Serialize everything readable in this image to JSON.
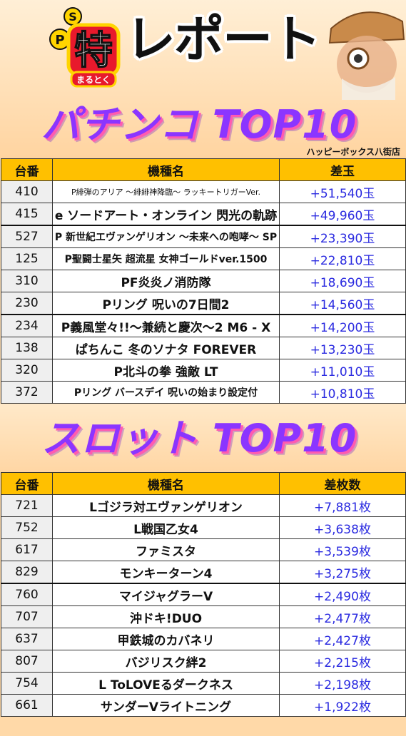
{
  "header": {
    "logo_letter_p": "P",
    "logo_letter_s": "S",
    "logo_kanji": "特",
    "logo_kana": "まるとく",
    "title": "レポート"
  },
  "pachinko": {
    "title": "パチンコ TOP10",
    "store": "ハッピーボックス八街店",
    "columns": [
      "台番",
      "機種名",
      "差玉"
    ],
    "rows": [
      {
        "num": "410",
        "name": "P緋弾のアリア 〜緋緋神降臨〜 ラッキートリガーVer.",
        "value": "+51,540玉"
      },
      {
        "num": "415",
        "name": "e ソードアート・オンライン 閃光の軌跡",
        "value": "+49,960玉"
      },
      {
        "num": "527",
        "name": "P 新世紀エヴァンゲリオン 〜未来への咆哮〜 SP",
        "value": "+23,390玉"
      },
      {
        "num": "125",
        "name": "P聖闘士星矢 超流星 女神ゴールドver.1500",
        "value": "+22,810玉"
      },
      {
        "num": "310",
        "name": "PF炎炎ノ消防隊",
        "value": "+18,690玉"
      },
      {
        "num": "230",
        "name": "Pリング 呪いの7日間2",
        "value": "+14,560玉"
      },
      {
        "num": "234",
        "name": "P義風堂々!!〜兼続と慶次〜2 M6 - X",
        "value": "+14,200玉"
      },
      {
        "num": "138",
        "name": "ぱちんこ 冬のソナタ FOREVER",
        "value": "+13,230玉"
      },
      {
        "num": "320",
        "name": "P北斗の拳 強敵 LT",
        "value": "+11,010玉"
      },
      {
        "num": "372",
        "name": "Pリング バースデイ 呪いの始まり設定付",
        "value": "+10,810玉"
      }
    ]
  },
  "slot": {
    "title": "スロット TOP10",
    "columns": [
      "台番",
      "機種名",
      "差枚数"
    ],
    "rows": [
      {
        "num": "721",
        "name": "Lゴジラ対エヴァンゲリオン",
        "value": "+7,881枚"
      },
      {
        "num": "752",
        "name": "L戦国乙女4",
        "value": "+3,638枚"
      },
      {
        "num": "617",
        "name": "ファミスタ",
        "value": "+3,539枚"
      },
      {
        "num": "829",
        "name": "モンキーターン4",
        "value": "+3,275枚"
      },
      {
        "num": "760",
        "name": "マイジャグラーV",
        "value": "+2,490枚"
      },
      {
        "num": "707",
        "name": "沖ドキ!DUO",
        "value": "+2,477枚"
      },
      {
        "num": "637",
        "name": "甲鉄城のカバネリ",
        "value": "+2,427枚"
      },
      {
        "num": "807",
        "name": "バジリスク絆2",
        "value": "+2,215枚"
      },
      {
        "num": "754",
        "name": "L ToLOVEるダークネス",
        "value": "+2,198枚"
      },
      {
        "num": "661",
        "name": "サンダーVライトニング",
        "value": "+1,922枚"
      }
    ]
  },
  "colors": {
    "header_cell": "#ffc000",
    "value_text": "#2a2ae0",
    "title_purple": "#8b35ff",
    "title_pink": "#ff5bb0",
    "logo_red": "#e8192c",
    "logo_yellow": "#ffd400"
  }
}
